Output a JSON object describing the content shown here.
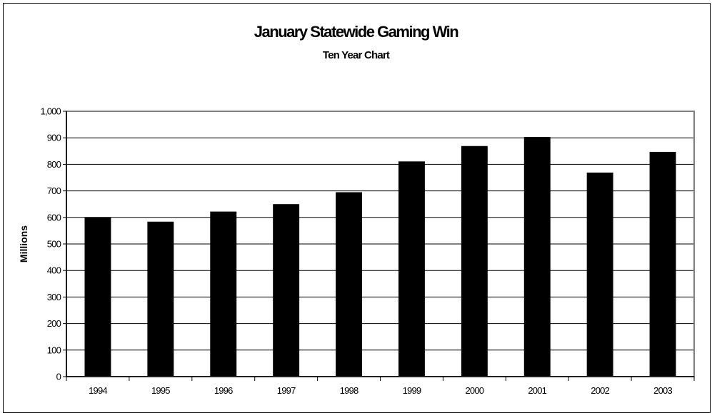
{
  "chart_data": {
    "type": "bar",
    "title": "January Statewide Gaming Win",
    "subtitle": "Ten Year Chart",
    "xlabel": "",
    "ylabel": "Millions",
    "categories": [
      "1994",
      "1995",
      "1996",
      "1997",
      "1998",
      "1999",
      "2000",
      "2001",
      "2002",
      "2003"
    ],
    "values": [
      601,
      584,
      622,
      650,
      695,
      811,
      869,
      903,
      769,
      847
    ],
    "ylim": [
      0,
      1000
    ],
    "y_ticks": [
      "0",
      "100",
      "200",
      "300",
      "400",
      "500",
      "600",
      "700",
      "800",
      "900",
      "1,000"
    ],
    "grid": true,
    "legend": "none",
    "colors": {
      "bar": "#000000",
      "grid": "#000000",
      "plot_border": "#808080",
      "background": "#ffffff"
    }
  }
}
